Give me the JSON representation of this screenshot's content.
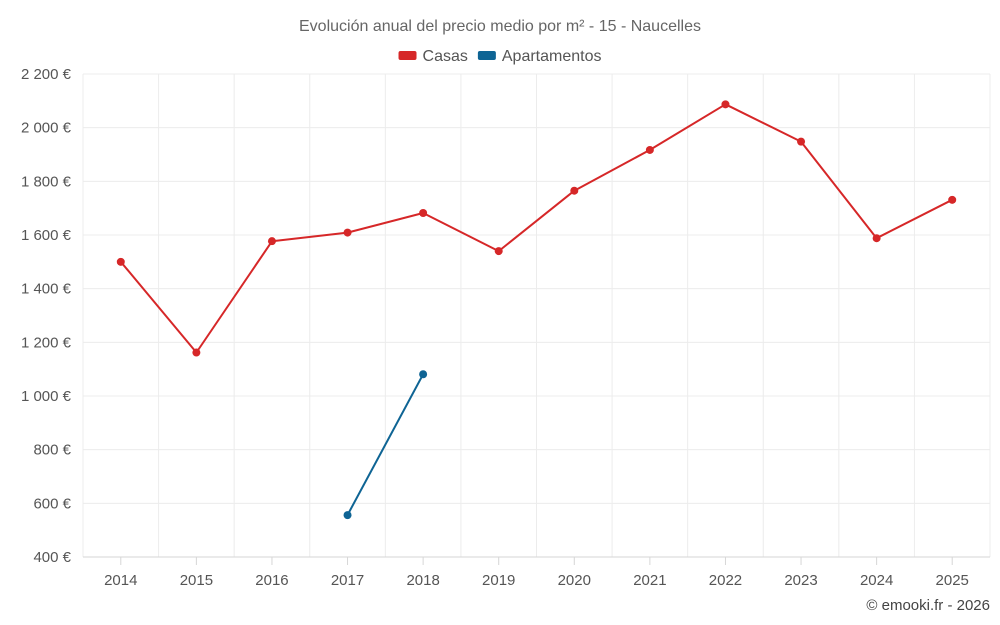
{
  "chart_data": {
    "type": "line",
    "title": "Evolución anual del precio medio por m² - 15 - Naucelles",
    "categories": [
      "2014",
      "2015",
      "2016",
      "2017",
      "2018",
      "2019",
      "2020",
      "2021",
      "2022",
      "2023",
      "2024",
      "2025"
    ],
    "series": [
      {
        "name": "Casas",
        "color": "#d62728",
        "values": [
          1500,
          1162,
          1577,
          1609,
          1682,
          1540,
          1765,
          1917,
          2087,
          1948,
          1588,
          1731
        ]
      },
      {
        "name": "Apartamentos",
        "color": "#0e6494",
        "values": [
          null,
          null,
          null,
          556,
          1081,
          null,
          null,
          null,
          null,
          null,
          null,
          null
        ]
      }
    ],
    "ylim": [
      400,
      2200
    ],
    "yticks": [
      400,
      600,
      800,
      1000,
      1200,
      1400,
      1600,
      1800,
      2000,
      2200
    ],
    "ytick_labels": [
      "400 €",
      "600 €",
      "800 €",
      "1 000 €",
      "1 200 €",
      "1 400 €",
      "1 600 €",
      "1 800 €",
      "2 000 €",
      "2 200 €"
    ],
    "legend_position": "top-center",
    "grid": true
  },
  "credit": "© emooki.fr - 2026"
}
